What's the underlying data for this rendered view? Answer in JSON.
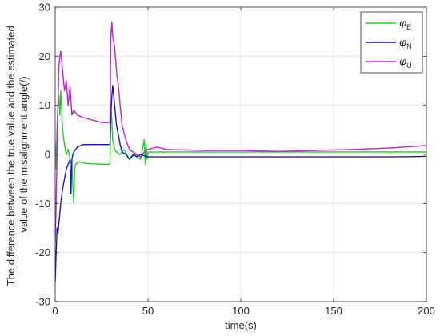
{
  "chart_data": {
    "type": "line",
    "title": "",
    "xlabel": "time(s)",
    "ylabel_lines": [
      "The difference between the true value and the estimated",
      "value of the misalignment angle(/)"
    ],
    "xlim": [
      0,
      200
    ],
    "ylim": [
      -30,
      30
    ],
    "xticks": [
      0,
      50,
      100,
      150,
      200
    ],
    "yticks": [
      -30,
      -20,
      -10,
      0,
      10,
      20,
      30
    ],
    "grid": true,
    "legend_position": "top-right",
    "series": [
      {
        "name": "φE",
        "symbol": "φ",
        "subscript": "E",
        "color": "#22cc22",
        "x": [
          0,
          0.5,
          1,
          1.5,
          2,
          2.5,
          3,
          4,
          5,
          6,
          7,
          8,
          9,
          9.5,
          10,
          10.5,
          11,
          13,
          16,
          20,
          25,
          29.5,
          30,
          30.5,
          31,
          32,
          33,
          35,
          37,
          40,
          43,
          46,
          48,
          48.5,
          49,
          49.5,
          50,
          55,
          60,
          80,
          100,
          120,
          140,
          160,
          180,
          200
        ],
        "y": [
          3,
          -3,
          6,
          10,
          12,
          8,
          13,
          5,
          2,
          0,
          1,
          -1,
          -2,
          -6,
          -10,
          -3,
          -2,
          -1.5,
          -1.8,
          -1.9,
          -2,
          -2,
          10,
          7,
          3,
          1,
          0.5,
          0,
          1,
          -1,
          0,
          -1,
          3,
          -2,
          2,
          -1,
          0.5,
          0.5,
          0.5,
          0.5,
          0.5,
          0.5,
          0.5,
          0.5,
          0.5,
          0.5
        ]
      },
      {
        "name": "φN",
        "symbol": "φ",
        "subscript": "N",
        "color": "#1414c8",
        "x": [
          0,
          0.5,
          1,
          1.5,
          2,
          2.5,
          3,
          4,
          5,
          6,
          7,
          8,
          8.5,
          9,
          9.5,
          10,
          12,
          15,
          20,
          25,
          29.5,
          30,
          30.5,
          31,
          32,
          33,
          34,
          35,
          36,
          38,
          40,
          42,
          44,
          46,
          48,
          50,
          55,
          60,
          80,
          100,
          120,
          140,
          160,
          180,
          200
        ],
        "y": [
          -26,
          -20,
          -15,
          -16,
          -14,
          -12,
          -10,
          -7,
          -5,
          -3,
          -2,
          -1,
          -8,
          -1,
          0,
          0.5,
          1.5,
          2,
          2,
          2,
          2,
          8,
          12,
          14,
          10,
          6,
          4,
          2,
          0.5,
          0,
          -1,
          0,
          -0.5,
          0,
          -0.3,
          -0.5,
          -0.5,
          -0.5,
          -0.5,
          -0.5,
          -0.5,
          -0.5,
          -0.5,
          -0.5,
          -0.4
        ]
      },
      {
        "name": "φU",
        "symbol": "φ",
        "subscript": "U",
        "color": "#b822e0",
        "x": [
          0,
          0.5,
          1,
          1.5,
          2,
          2.5,
          3,
          3.5,
          4,
          5,
          6,
          7,
          8,
          9,
          10,
          12,
          15,
          20,
          25,
          29.5,
          30,
          30.5,
          31,
          32,
          33,
          34,
          35,
          36,
          38,
          40,
          42,
          44,
          46,
          48,
          50,
          55,
          60,
          80,
          100,
          120,
          140,
          160,
          180,
          200
        ],
        "y": [
          -18,
          -10,
          0,
          10,
          18,
          20,
          21,
          19,
          17,
          13,
          15,
          10,
          14,
          8,
          9,
          8,
          7.5,
          7,
          6.5,
          6.5,
          24,
          27,
          24,
          22,
          17,
          14,
          10,
          6,
          3,
          1,
          0.5,
          0,
          -0.5,
          0.5,
          1,
          1.5,
          1,
          0.8,
          0.8,
          0.6,
          0.8,
          1,
          1.3,
          1.8
        ]
      }
    ]
  }
}
